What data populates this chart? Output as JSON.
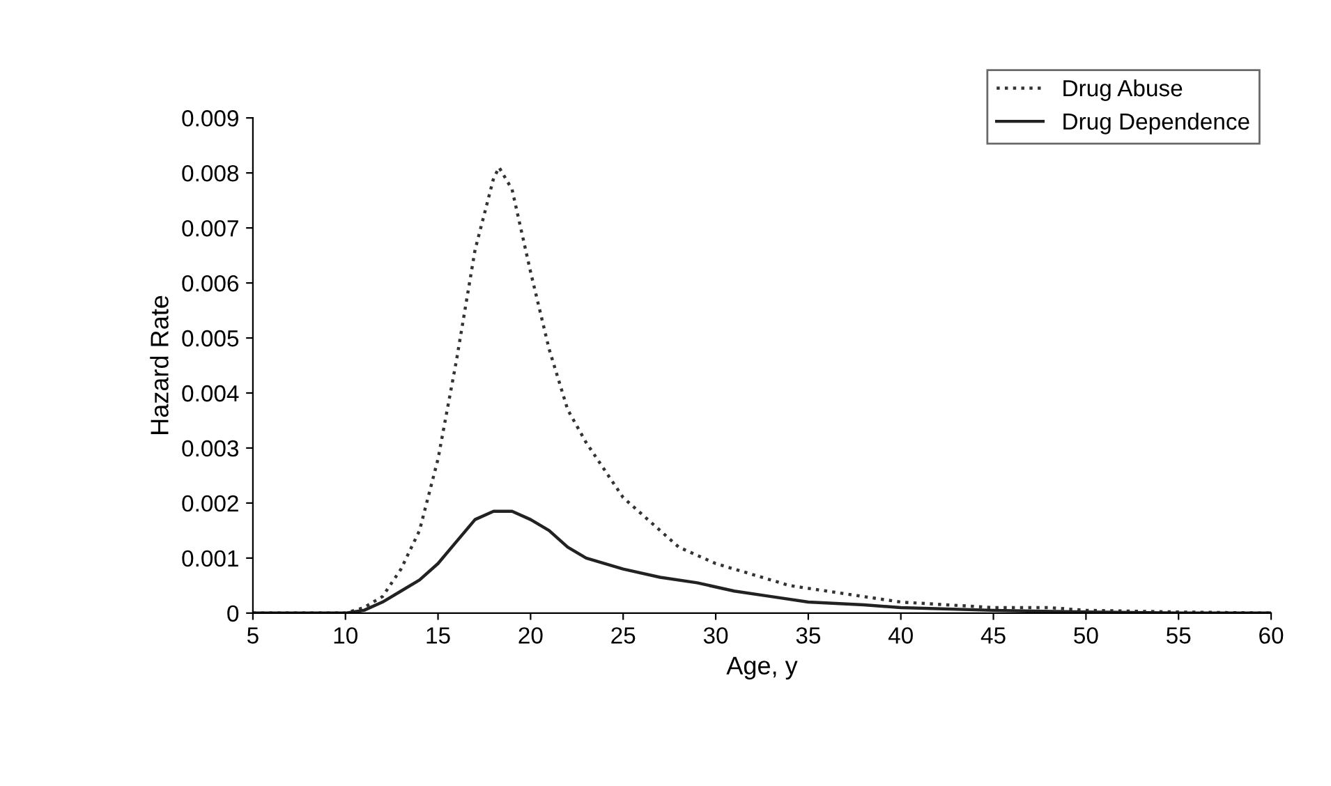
{
  "chart_data": {
    "type": "line",
    "xlabel": "Age, y",
    "ylabel": "Hazard Rate",
    "xlim": [
      5,
      60
    ],
    "xticks": [
      5,
      10,
      15,
      20,
      25,
      30,
      35,
      40,
      45,
      50,
      55,
      60
    ],
    "ylim": [
      0,
      0.009
    ],
    "yticks": [
      0,
      0.001,
      0.002,
      0.003,
      0.004,
      0.005,
      0.006,
      0.007,
      0.008,
      0.009
    ],
    "grid": false,
    "legend": "top right",
    "series": [
      {
        "name": "Drug Abuse",
        "color": "#333333",
        "line_style": "dotted",
        "x": [
          5,
          8,
          10,
          11,
          12,
          13,
          14,
          15,
          16,
          17,
          18,
          18.3,
          19,
          20,
          21,
          22,
          23,
          24,
          25,
          26,
          27,
          28,
          30,
          32,
          34,
          36,
          38,
          40,
          45,
          48,
          50,
          55,
          60
        ],
        "values": [
          0,
          0,
          0,
          0.0001,
          0.0003,
          0.0008,
          0.0015,
          0.0028,
          0.0046,
          0.0066,
          0.0079,
          0.0081,
          0.0077,
          0.0062,
          0.0048,
          0.0037,
          0.0031,
          0.0026,
          0.0021,
          0.0018,
          0.0015,
          0.0012,
          0.0009,
          0.0007,
          0.0005,
          0.0004,
          0.0003,
          0.0002,
          0.0001,
          0.0001,
          5e-05,
          2e-05,
          0
        ]
      },
      {
        "name": "Drug Dependence",
        "color": "#222222",
        "line_style": "solid",
        "x": [
          5,
          8,
          10,
          11,
          12,
          13,
          14,
          15,
          16,
          17,
          18,
          19,
          20,
          21,
          22,
          23,
          25,
          27,
          29,
          31,
          33,
          35,
          38,
          40,
          45,
          50,
          55,
          60
        ],
        "values": [
          0,
          0,
          0,
          5e-05,
          0.0002,
          0.0004,
          0.0006,
          0.0009,
          0.0013,
          0.0017,
          0.00185,
          0.00185,
          0.0017,
          0.0015,
          0.0012,
          0.001,
          0.0008,
          0.00065,
          0.00055,
          0.0004,
          0.0003,
          0.0002,
          0.00015,
          0.0001,
          5e-05,
          2e-05,
          0,
          0
        ]
      }
    ]
  }
}
